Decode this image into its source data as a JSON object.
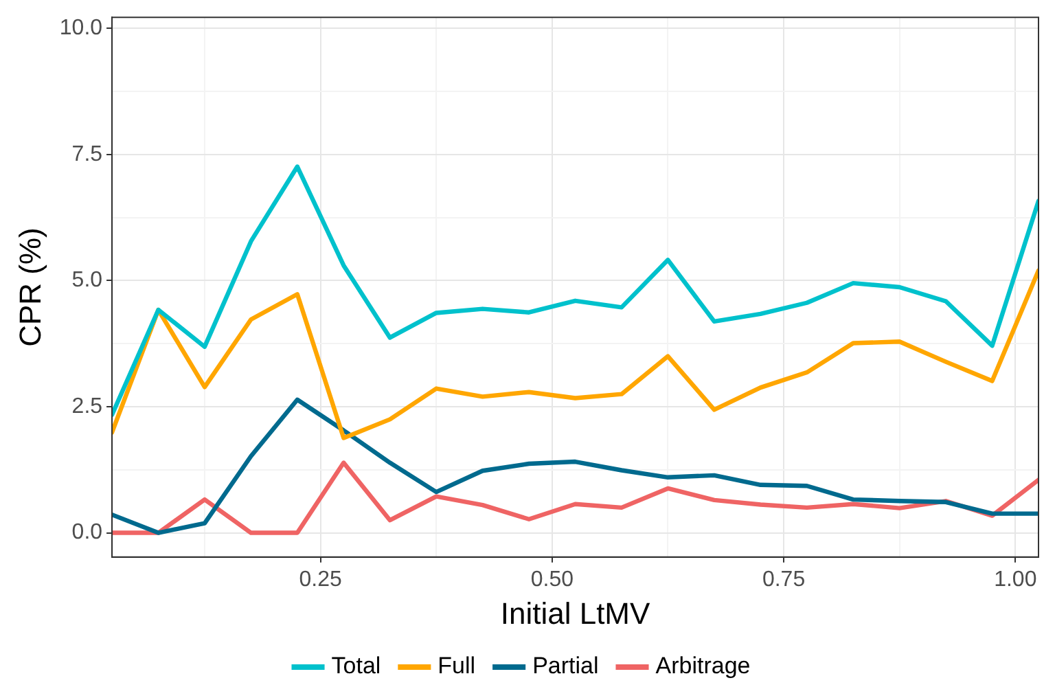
{
  "chart_data": {
    "type": "line",
    "xlabel": "Initial LtMV",
    "ylabel": "CPR (%)",
    "x": [
      0.025,
      0.075,
      0.125,
      0.175,
      0.225,
      0.275,
      0.325,
      0.375,
      0.425,
      0.475,
      0.525,
      0.575,
      0.625,
      0.675,
      0.725,
      0.775,
      0.825,
      0.875,
      0.925,
      0.975,
      1.025
    ],
    "series": [
      {
        "name": "Total",
        "color": "#00c1cc",
        "values": [
          2.34,
          4.42,
          3.69,
          5.78,
          7.26,
          5.3,
          3.87,
          4.36,
          4.44,
          4.37,
          4.6,
          4.47,
          5.41,
          4.19,
          4.34,
          4.56,
          4.95,
          4.87,
          4.59,
          3.71,
          6.58
        ]
      },
      {
        "name": "Full",
        "color": "#ffa600",
        "values": [
          1.99,
          4.42,
          2.89,
          4.23,
          4.73,
          1.88,
          2.25,
          2.86,
          2.7,
          2.79,
          2.67,
          2.75,
          3.5,
          2.44,
          2.88,
          3.18,
          3.76,
          3.79,
          3.39,
          3.01,
          5.2
        ]
      },
      {
        "name": "Partial",
        "color": "#006a8e",
        "values": [
          0.36,
          0.0,
          0.19,
          1.52,
          2.64,
          2.03,
          1.39,
          0.81,
          1.23,
          1.37,
          1.41,
          1.24,
          1.1,
          1.14,
          0.95,
          0.93,
          0.66,
          0.63,
          0.61,
          0.38,
          0.38
        ]
      },
      {
        "name": "Arbitrage",
        "color": "#ef6464",
        "values": [
          0.0,
          0.0,
          0.66,
          0.0,
          0.0,
          1.39,
          0.25,
          0.72,
          0.55,
          0.27,
          0.57,
          0.5,
          0.88,
          0.65,
          0.56,
          0.5,
          0.57,
          0.49,
          0.63,
          0.34,
          1.05
        ]
      }
    ],
    "xlim": [
      0.025,
      1.025
    ],
    "ylim": [
      -0.48,
      10.22
    ],
    "xticks": [
      {
        "value": 0.125,
        "label": null
      },
      0.25,
      {
        "value": 0.375,
        "label": null
      },
      {
        "value": 0.5,
        "label": "0.50"
      },
      {
        "value": 0.625,
        "label": null
      },
      0.75,
      {
        "value": 0.875,
        "label": null
      },
      {
        "value": 1,
        "label": "1.00"
      }
    ],
    "yticks": [
      {
        "value": 0,
        "label": "0.0"
      },
      {
        "value": 1.25,
        "label": null
      },
      2.5,
      {
        "value": 3.75,
        "label": null
      },
      {
        "value": 5,
        "label": "5.0"
      },
      {
        "value": 6.25,
        "label": null
      },
      7.5,
      {
        "value": 8.75,
        "label": null
      },
      {
        "value": 10,
        "label": "10.0"
      }
    ],
    "grid": true,
    "legend": "bottom",
    "line_style": "solid",
    "marker": "none"
  }
}
